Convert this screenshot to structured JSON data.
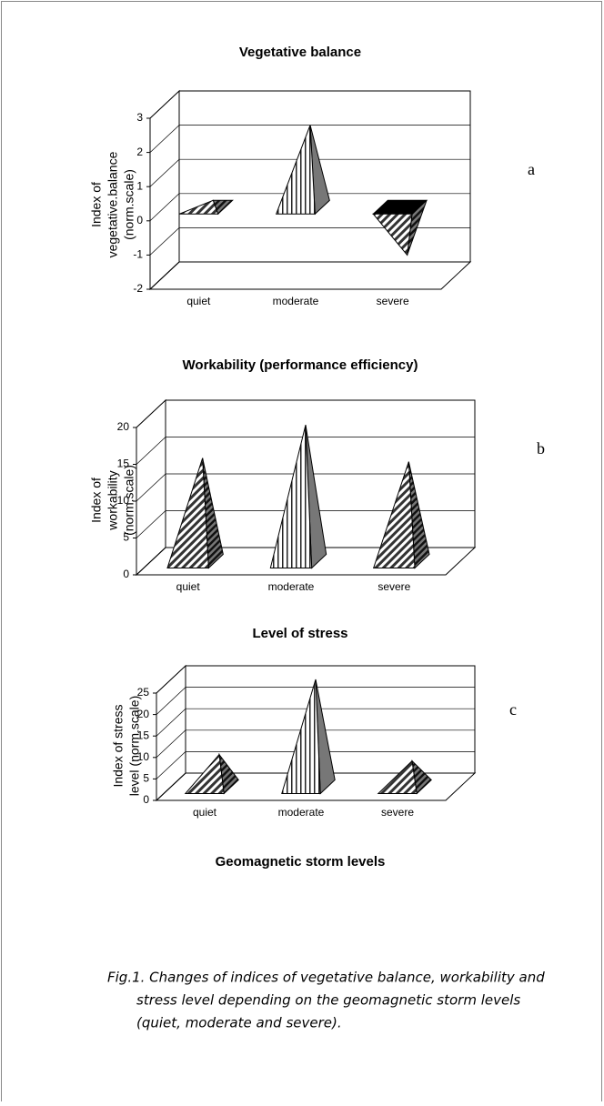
{
  "chart_data": [
    {
      "type": "pyramid3d",
      "title": "Vegetative balance",
      "panel": "a",
      "y_label": [
        "Index of",
        "vegetative.balance",
        "(norm.scale)"
      ],
      "categories": [
        "quiet",
        "moderate",
        "severe"
      ],
      "values": [
        0.2,
        2.4,
        -1.4
      ],
      "ylim": [
        -2,
        3
      ],
      "yticks": [
        -2,
        -1,
        0,
        1,
        2,
        3
      ],
      "grid": true
    },
    {
      "type": "pyramid3d",
      "title": "Workability (performance efficiency)",
      "panel": "b",
      "y_label": [
        "Index of",
        "workability",
        "(norm.scale)"
      ],
      "categories": [
        "quiet",
        "moderate",
        "severe"
      ],
      "values": [
        14,
        18.5,
        13.5
      ],
      "ylim": [
        0,
        20
      ],
      "yticks": [
        0,
        5,
        10,
        15,
        20
      ],
      "grid": true
    },
    {
      "type": "pyramid3d",
      "title": "Level of stress",
      "panel": "c",
      "y_label": [
        "Index of stress",
        "level (norm.scale)"
      ],
      "x_label": "Geomagnetic storm levels",
      "categories": [
        "quiet",
        "moderate",
        "severe"
      ],
      "values": [
        7.5,
        25,
        6
      ],
      "ylim": [
        0,
        25
      ],
      "yticks": [
        0,
        5,
        10,
        15,
        20,
        25
      ],
      "grid": true
    }
  ],
  "caption": [
    "Fig.1. Changes of indices of vegetative balance, workability and",
    "stress level depending on the geomagnetic storm levels",
    "(quiet, moderate and severe)."
  ]
}
